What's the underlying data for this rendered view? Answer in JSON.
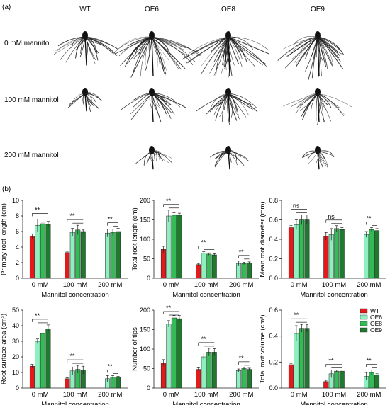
{
  "panel_a": {
    "label": "(a)",
    "genotypes": [
      "WT",
      "OE6",
      "OE8",
      "OE9"
    ],
    "conditions": [
      "0 mM mannitol",
      "100 mM mannitol",
      "200 mM mannitol"
    ],
    "root_images": [
      [
        {
          "size": "medium"
        },
        {
          "size": "large"
        },
        {
          "size": "large"
        },
        {
          "size": "large"
        }
      ],
      [
        {
          "size": "small"
        },
        {
          "size": "medium"
        },
        {
          "size": "medium"
        },
        {
          "size": "medium"
        }
      ],
      [
        {
          "size": "none"
        },
        {
          "size": "small"
        },
        {
          "size": "small"
        },
        {
          "size": "small"
        }
      ]
    ]
  },
  "panel_b": {
    "label": "(b)",
    "colors": {
      "WT": "#e31a1c",
      "OE6": "#8ef0c0",
      "OE8": "#33bb55",
      "OE9": "#1f7a2f"
    },
    "legend": [
      "WT",
      "OE6",
      "OE8",
      "OE9"
    ]
  },
  "chart_data": [
    {
      "type": "bar",
      "ylabel": "Primary root length (cm)",
      "xlabel": "Mannitol concentration",
      "categories": [
        "0 mM",
        "100 mM",
        "200 mM"
      ],
      "ylim": [
        0,
        10
      ],
      "yticks": [
        0,
        2,
        4,
        6,
        8,
        10
      ],
      "series": [
        {
          "name": "WT",
          "values": [
            5.4,
            3.3,
            0
          ],
          "errors": [
            0.3,
            0.15,
            0
          ]
        },
        {
          "name": "OE6",
          "values": [
            6.8,
            5.9,
            5.8
          ],
          "errors": [
            0.8,
            0.5,
            0.5
          ]
        },
        {
          "name": "OE8",
          "values": [
            7.0,
            6.2,
            5.9
          ],
          "errors": [
            0.2,
            0.6,
            0.4
          ]
        },
        {
          "name": "OE9",
          "values": [
            6.9,
            6.0,
            6.0
          ],
          "errors": [
            0.4,
            0.2,
            0.4
          ]
        }
      ],
      "significance": [
        "**",
        "**",
        "**"
      ]
    },
    {
      "type": "bar",
      "ylabel": "Total root length (cm)",
      "xlabel": "Mannitol concentration",
      "categories": [
        "0 mM",
        "100 mM",
        "200 mM"
      ],
      "ylim": [
        0,
        200
      ],
      "yticks": [
        0,
        50,
        100,
        150,
        200
      ],
      "series": [
        {
          "name": "WT",
          "values": [
            74,
            35,
            0
          ],
          "errors": [
            8,
            3,
            0
          ]
        },
        {
          "name": "OE6",
          "values": [
            160,
            65,
            38
          ],
          "errors": [
            15,
            3,
            6
          ]
        },
        {
          "name": "OE8",
          "values": [
            162,
            62,
            38
          ],
          "errors": [
            6,
            3,
            3
          ]
        },
        {
          "name": "OE9",
          "values": [
            162,
            60,
            39
          ],
          "errors": [
            5,
            3,
            3
          ]
        }
      ],
      "significance": [
        "**",
        "**",
        "**"
      ]
    },
    {
      "type": "bar",
      "ylabel": "Mean root diameter (mm)",
      "xlabel": "Mannitol concentration",
      "categories": [
        "0 mM",
        "100 mM",
        "200 mM"
      ],
      "ylim": [
        0,
        0.8
      ],
      "yticks": [
        0.0,
        0.2,
        0.4,
        0.6,
        0.8
      ],
      "series": [
        {
          "name": "WT",
          "values": [
            0.52,
            0.43,
            0
          ],
          "errors": [
            0.02,
            0.04,
            0
          ]
        },
        {
          "name": "OE6",
          "values": [
            0.55,
            0.45,
            0.45
          ],
          "errors": [
            0.05,
            0.06,
            0.03
          ]
        },
        {
          "name": "OE8",
          "values": [
            0.6,
            0.51,
            0.5
          ],
          "errors": [
            0.05,
            0.03,
            0.02
          ]
        },
        {
          "name": "OE9",
          "values": [
            0.6,
            0.5,
            0.49
          ],
          "errors": [
            0.05,
            0.02,
            0.02
          ]
        }
      ],
      "significance": [
        "ns",
        "ns",
        "**"
      ]
    },
    {
      "type": "bar",
      "ylabel": "Root surface area (cm²)",
      "xlabel": "Mannitol concentration",
      "categories": [
        "0 mM",
        "100 mM",
        "200 mM"
      ],
      "ylim": [
        0,
        50
      ],
      "yticks": [
        0,
        10,
        20,
        30,
        40,
        50
      ],
      "series": [
        {
          "name": "WT",
          "values": [
            14,
            6,
            0
          ],
          "errors": [
            1.2,
            0.6,
            0
          ]
        },
        {
          "name": "OE6",
          "values": [
            30,
            11,
            6
          ],
          "errors": [
            1.5,
            2.5,
            2
          ]
        },
        {
          "name": "OE8",
          "values": [
            35,
            12,
            7
          ],
          "errors": [
            3,
            2.5,
            1
          ]
        },
        {
          "name": "OE9",
          "values": [
            38,
            11.5,
            7
          ],
          "errors": [
            2.5,
            2.5,
            0.5
          ]
        }
      ],
      "significance": [
        "**",
        "**",
        "**"
      ]
    },
    {
      "type": "bar",
      "ylabel": "Number of tips",
      "xlabel": "Mannitol concentration",
      "categories": [
        "0 mM",
        "100 mM",
        "200 mM"
      ],
      "ylim": [
        0,
        200
      ],
      "yticks": [
        0,
        50,
        100,
        150,
        200
      ],
      "series": [
        {
          "name": "WT",
          "values": [
            65,
            48,
            0
          ],
          "errors": [
            8,
            4,
            0
          ]
        },
        {
          "name": "OE6",
          "values": [
            165,
            80,
            45
          ],
          "errors": [
            8,
            10,
            4
          ]
        },
        {
          "name": "OE8",
          "values": [
            180,
            92,
            50
          ],
          "errors": [
            6,
            10,
            3
          ]
        },
        {
          "name": "OE9",
          "values": [
            178,
            92,
            48
          ],
          "errors": [
            8,
            9,
            3
          ]
        }
      ],
      "significance": [
        "**",
        "**",
        "**"
      ]
    },
    {
      "type": "bar",
      "ylabel": "Total root volume (cm³)",
      "xlabel": "Mannitol concentration",
      "categories": [
        "0 mM",
        "100 mM",
        "200 mM"
      ],
      "ylim": [
        0,
        0.6
      ],
      "yticks": [
        0.0,
        0.2,
        0.4,
        0.6
      ],
      "series": [
        {
          "name": "WT",
          "values": [
            0.18,
            0.05,
            0
          ],
          "errors": [
            0.01,
            0.01,
            0
          ]
        },
        {
          "name": "OE6",
          "values": [
            0.42,
            0.11,
            0.09
          ],
          "errors": [
            0.06,
            0.03,
            0.03
          ]
        },
        {
          "name": "OE8",
          "values": [
            0.46,
            0.13,
            0.12
          ],
          "errors": [
            0.03,
            0.01,
            0.02
          ]
        },
        {
          "name": "OE9",
          "values": [
            0.46,
            0.13,
            0.1
          ],
          "errors": [
            0.03,
            0.01,
            0.01
          ]
        }
      ],
      "significance": [
        "**",
        "**",
        "**"
      ]
    }
  ]
}
